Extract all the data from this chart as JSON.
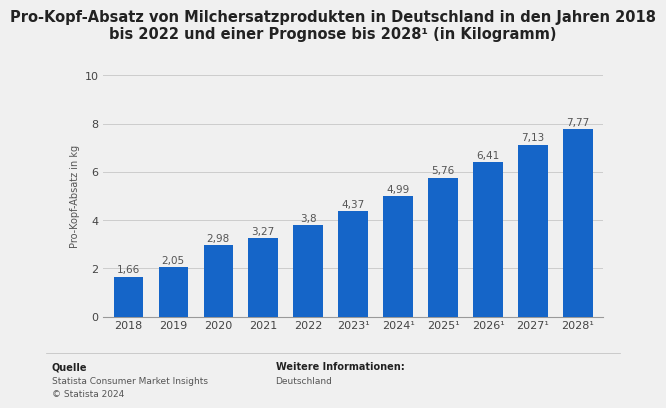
{
  "title_line1": "Pro-Kopf-Absatz von Milchersatzprodukten in Deutschland in den Jahren 2018",
  "title_line2": "bis 2022 und einer Prognose bis 2028¹ (in Kilogramm)",
  "ylabel": "Pro-Kopf-Absatz in kg",
  "categories": [
    "2018",
    "2019",
    "2020",
    "2021",
    "2022",
    "2023¹",
    "2024¹",
    "2025¹",
    "2026¹",
    "2027¹",
    "2028¹"
  ],
  "values": [
    1.66,
    2.05,
    2.98,
    3.27,
    3.8,
    4.37,
    4.99,
    5.76,
    6.41,
    7.13,
    7.77
  ],
  "bar_color": "#1565c8",
  "ylim": [
    0,
    10
  ],
  "yticks": [
    0,
    2,
    4,
    6,
    8,
    10
  ],
  "background_color": "#f0f0f0",
  "title_fontsize": 10.5,
  "label_fontsize": 7.5,
  "tick_fontsize": 8,
  "ylabel_fontsize": 7,
  "footer_left_title": "Quelle",
  "footer_left_line1": "Statista Consumer Market Insights",
  "footer_left_line2": "© Statista 2024",
  "footer_right_title": "Weitere Informationen:",
  "footer_right_line1": "Deutschland"
}
